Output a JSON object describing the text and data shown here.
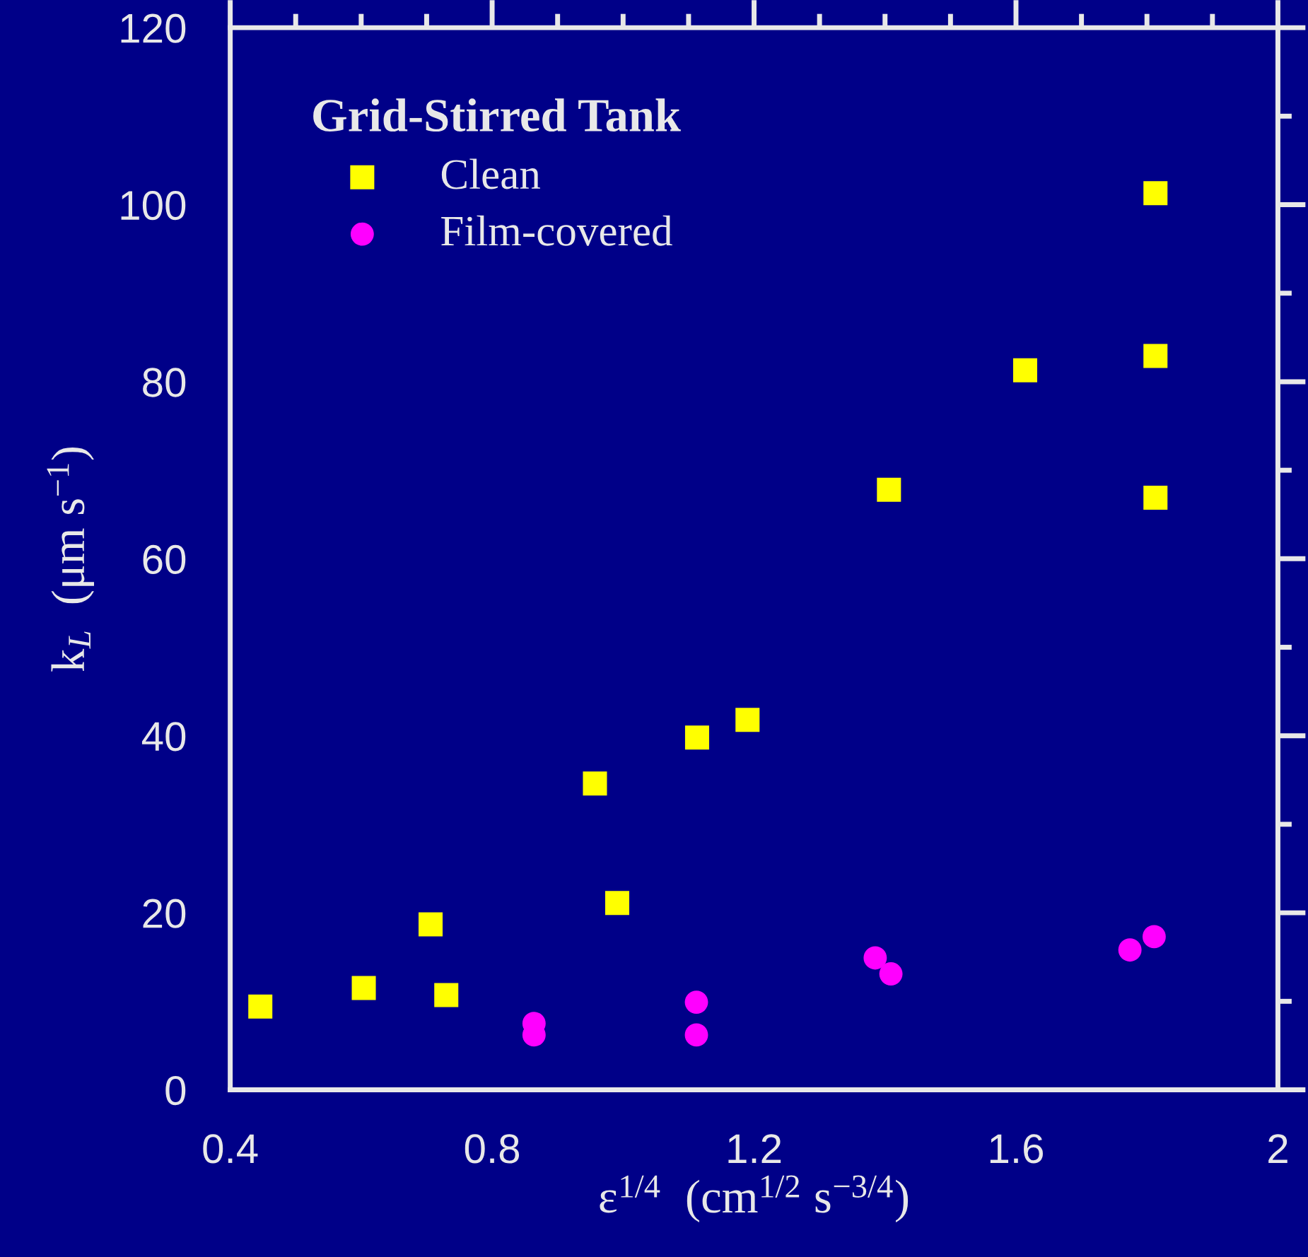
{
  "chart_data": {
    "type": "scatter",
    "xlabel": "ε$^{1/4}$  (cm$^{1/2}$ s$^{−3/4}$)",
    "ylabel": "k$_{L}$  (μm s$^{−1}$)",
    "legend_title": "Grid-Stirred Tank",
    "legend": "top left",
    "grid": false,
    "xlim": [
      0.4,
      2.0
    ],
    "xticks": [
      0.4,
      0.8,
      1.2,
      1.6,
      {
        "value": 2.0,
        "label": "2"
      }
    ],
    "ylim": [
      0,
      120
    ],
    "yticks": [
      0,
      20,
      40,
      60,
      80,
      100,
      120
    ],
    "series": [
      {
        "name": "Clean",
        "color": "#ffff00",
        "marker": "square",
        "x": [
          0.446,
          0.604,
          0.706,
          0.73,
          0.957,
          0.991,
          1.113,
          1.19,
          1.406,
          1.614,
          1.813,
          1.813,
          1.813
        ],
        "values": [
          9.4,
          11.5,
          18.7,
          10.7,
          34.6,
          21.1,
          39.8,
          41.8,
          67.8,
          81.3,
          101.3,
          82.9,
          66.9
        ]
      },
      {
        "name": "Film-covered",
        "color": "#ff00ff",
        "marker": "circle",
        "x": [
          0.864,
          0.864,
          1.112,
          1.112,
          1.385,
          1.409,
          1.774,
          1.811
        ],
        "values": [
          7.5,
          6.2,
          9.9,
          6.2,
          14.9,
          13.1,
          15.8,
          17.3
        ]
      }
    ]
  }
}
